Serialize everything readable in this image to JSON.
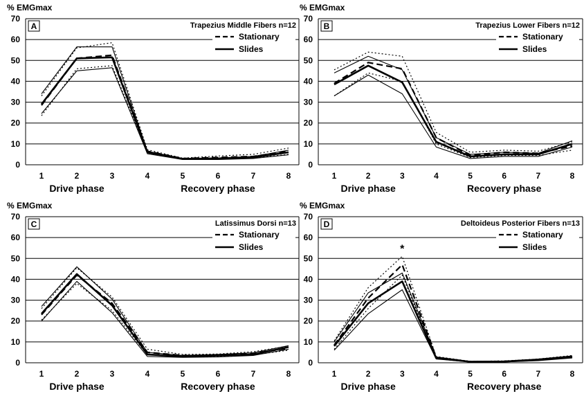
{
  "chart_data": [
    {
      "type": "line",
      "panel_letter": "A",
      "title": "Trapezius Middle Fibers n=12",
      "ylabel": "% EMGmax",
      "ylim": [
        0,
        70
      ],
      "yticks": [
        0,
        10,
        20,
        30,
        40,
        50,
        60,
        70
      ],
      "x": [
        1,
        2,
        3,
        4,
        5,
        6,
        7,
        8
      ],
      "xlabels": [
        "Drive phase",
        "Recovery phase"
      ],
      "legend": [
        "Stationary",
        "Slides"
      ],
      "series": [
        {
          "name": "Stationary",
          "role": "mean",
          "style": "dashed",
          "values": [
            28.5,
            51.0,
            52.5,
            6.5,
            3.0,
            3.5,
            4.0,
            6.5
          ]
        },
        {
          "name": "Stationary",
          "role": "upper",
          "style": "dotted",
          "values": [
            33.0,
            56.0,
            58.5,
            7.2,
            3.2,
            4.2,
            5.0,
            8.0
          ]
        },
        {
          "name": "Stationary",
          "role": "lower",
          "style": "dotted",
          "values": [
            23.5,
            46.0,
            47.5,
            5.8,
            2.6,
            2.8,
            3.2,
            5.0
          ]
        },
        {
          "name": "Slides",
          "role": "mean",
          "style": "solid-thick",
          "values": [
            29.0,
            51.0,
            51.5,
            6.0,
            2.8,
            3.0,
            3.5,
            6.0
          ]
        },
        {
          "name": "Slides",
          "role": "upper",
          "style": "solid",
          "values": [
            34.0,
            56.5,
            56.5,
            6.5,
            3.0,
            3.3,
            4.0,
            7.0
          ]
        },
        {
          "name": "Slides",
          "role": "lower",
          "style": "solid",
          "values": [
            24.5,
            45.0,
            46.5,
            5.3,
            2.5,
            2.5,
            3.0,
            4.8
          ]
        }
      ],
      "annotations": []
    },
    {
      "type": "line",
      "panel_letter": "B",
      "title": "Trapezius Lower Fibers n=12",
      "ylabel": "% EMGmax",
      "ylim": [
        0,
        70
      ],
      "yticks": [
        0,
        10,
        20,
        30,
        40,
        50,
        60,
        70
      ],
      "x": [
        1,
        2,
        3,
        4,
        5,
        6,
        7,
        8
      ],
      "xlabels": [
        "Drive phase",
        "Recovery phase"
      ],
      "legend": [
        "Stationary",
        "Slides"
      ],
      "series": [
        {
          "name": "Stationary",
          "role": "mean",
          "style": "dashed",
          "values": [
            39.0,
            49.0,
            46.0,
            13.0,
            4.5,
            6.0,
            5.5,
            9.0
          ]
        },
        {
          "name": "Stationary",
          "role": "upper",
          "style": "dotted",
          "values": [
            45.5,
            54.0,
            52.0,
            15.5,
            6.0,
            7.0,
            6.5,
            11.0
          ]
        },
        {
          "name": "Stationary",
          "role": "lower",
          "style": "dotted",
          "values": [
            33.0,
            44.0,
            40.0,
            10.0,
            3.5,
            4.5,
            4.5,
            7.0
          ]
        },
        {
          "name": "Slides",
          "role": "mean",
          "style": "solid-thick",
          "values": [
            38.5,
            47.5,
            39.5,
            11.0,
            4.0,
            5.0,
            5.0,
            10.0
          ]
        },
        {
          "name": "Slides",
          "role": "upper",
          "style": "solid",
          "values": [
            44.0,
            52.0,
            45.5,
            13.0,
            5.0,
            6.0,
            5.5,
            11.5
          ]
        },
        {
          "name": "Slides",
          "role": "lower",
          "style": "solid",
          "values": [
            33.0,
            43.0,
            34.0,
            8.5,
            3.0,
            4.0,
            4.0,
            8.5
          ]
        }
      ],
      "annotations": []
    },
    {
      "type": "line",
      "panel_letter": "C",
      "title": "Latissimus Dorsi n=13",
      "ylabel": "% EMGmax",
      "ylim": [
        0,
        70
      ],
      "yticks": [
        0,
        10,
        20,
        30,
        40,
        50,
        60,
        70
      ],
      "x": [
        1,
        2,
        3,
        4,
        5,
        6,
        7,
        8
      ],
      "xlabels": [
        "Drive phase",
        "Recovery phase"
      ],
      "legend": [
        "Stationary",
        "Slides"
      ],
      "series": [
        {
          "name": "Stationary",
          "role": "mean",
          "style": "dashed",
          "values": [
            23.0,
            42.0,
            28.5,
            5.0,
            3.5,
            3.5,
            4.5,
            7.0
          ]
        },
        {
          "name": "Stationary",
          "role": "upper",
          "style": "dotted",
          "values": [
            26.0,
            45.5,
            31.5,
            6.5,
            4.0,
            4.2,
            5.3,
            8.0
          ]
        },
        {
          "name": "Stationary",
          "role": "lower",
          "style": "dotted",
          "values": [
            20.5,
            38.0,
            25.0,
            3.8,
            3.0,
            3.0,
            3.8,
            6.0
          ]
        },
        {
          "name": "Slides",
          "role": "mean",
          "style": "solid-thick",
          "values": [
            23.5,
            42.5,
            27.5,
            4.0,
            3.0,
            3.5,
            4.0,
            7.5
          ]
        },
        {
          "name": "Slides",
          "role": "upper",
          "style": "solid",
          "values": [
            27.0,
            46.0,
            30.5,
            5.0,
            3.5,
            4.0,
            4.8,
            8.2
          ]
        },
        {
          "name": "Slides",
          "role": "lower",
          "style": "solid",
          "values": [
            20.0,
            39.0,
            24.0,
            3.0,
            2.6,
            2.8,
            3.5,
            6.5
          ]
        }
      ],
      "annotations": []
    },
    {
      "type": "line",
      "panel_letter": "D",
      "title": "Deltoideus Posterior Fibers n=13",
      "ylabel": "% EMGmax",
      "ylim": [
        0,
        70
      ],
      "yticks": [
        0,
        10,
        20,
        30,
        40,
        50,
        60,
        70
      ],
      "x": [
        1,
        2,
        3,
        4,
        5,
        6,
        7,
        8
      ],
      "xlabels": [
        "Drive phase",
        "Recovery phase"
      ],
      "legend": [
        "Stationary",
        "Slides"
      ],
      "series": [
        {
          "name": "Stationary",
          "role": "mean",
          "style": "dashed",
          "values": [
            8.5,
            31.0,
            47.0,
            2.5,
            0.5,
            0.7,
            1.5,
            3.0
          ]
        },
        {
          "name": "Stationary",
          "role": "upper",
          "style": "dotted",
          "values": [
            10.5,
            36.0,
            51.0,
            3.0,
            0.7,
            0.9,
            1.8,
            3.5
          ]
        },
        {
          "name": "Stationary",
          "role": "lower",
          "style": "dotted",
          "values": [
            6.5,
            26.0,
            42.0,
            2.0,
            0.4,
            0.5,
            1.2,
            2.5
          ]
        },
        {
          "name": "Slides",
          "role": "mean",
          "style": "solid-thick",
          "values": [
            8.0,
            28.5,
            39.0,
            2.2,
            0.5,
            0.6,
            1.4,
            2.8
          ]
        },
        {
          "name": "Slides",
          "role": "upper",
          "style": "solid",
          "values": [
            10.0,
            33.5,
            43.0,
            2.8,
            0.7,
            0.8,
            1.8,
            3.3
          ]
        },
        {
          "name": "Slides",
          "role": "lower",
          "style": "solid",
          "values": [
            6.0,
            23.5,
            35.0,
            1.8,
            0.4,
            0.4,
            1.0,
            2.3
          ]
        }
      ],
      "annotations": [
        {
          "x": 3,
          "text": "*"
        }
      ]
    }
  ]
}
